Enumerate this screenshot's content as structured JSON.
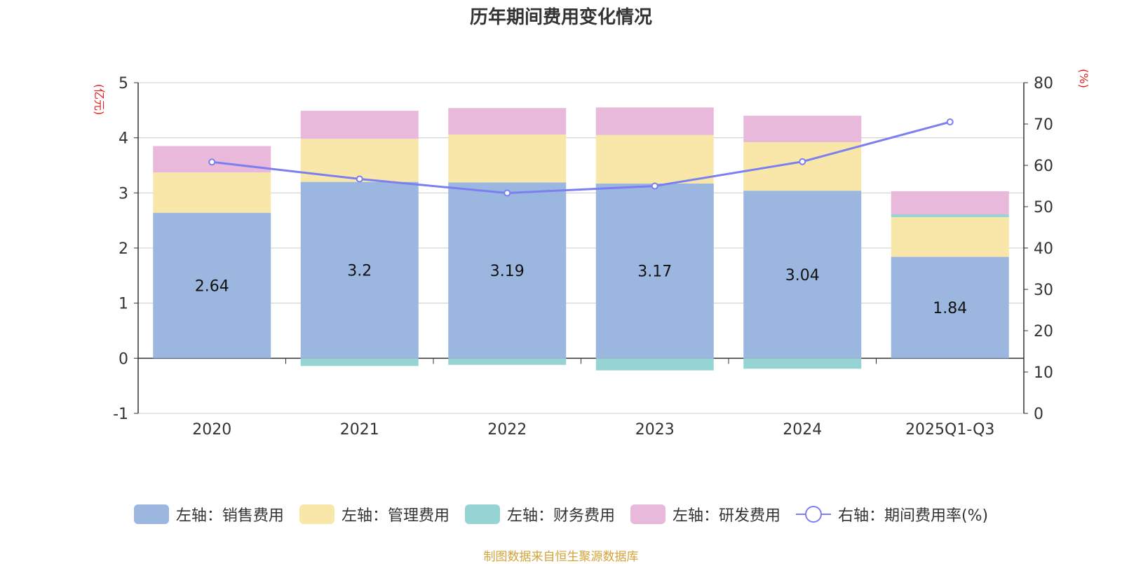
{
  "chart_data": {
    "type": "bar",
    "title": "历年期间费用变化情况",
    "categories": [
      "2020",
      "2021",
      "2022",
      "2023",
      "2024",
      "2025Q1-Q3"
    ],
    "left_axis": {
      "unit_label": "(亿元)",
      "ylim": [
        -1,
        5
      ],
      "ticks": [
        "-1",
        "0",
        "1",
        "2",
        "3",
        "4",
        "5"
      ]
    },
    "right_axis": {
      "unit_label": "(%)",
      "ylim": [
        0,
        80
      ],
      "ticks": [
        "0",
        "10",
        "20",
        "30",
        "40",
        "50",
        "60",
        "70",
        "80"
      ]
    },
    "series": [
      {
        "name": "左轴：销售费用",
        "type": "bar",
        "stack": true,
        "color": "#9bb7e0",
        "values": [
          2.64,
          3.2,
          3.19,
          3.17,
          3.04,
          1.84
        ],
        "labels": [
          "2.64",
          "3.2",
          "3.19",
          "3.17",
          "3.04",
          "1.84"
        ]
      },
      {
        "name": "左轴：管理费用",
        "type": "bar",
        "stack": true,
        "color": "#f9e7a9",
        "values": [
          0.73,
          0.78,
          0.87,
          0.88,
          0.88,
          0.72
        ]
      },
      {
        "name": "左轴：财务费用",
        "type": "bar",
        "stack": true,
        "color": "#96d4d4",
        "values": [
          0.0,
          -0.14,
          -0.12,
          -0.22,
          -0.19,
          0.05
        ]
      },
      {
        "name": "左轴：研发费用",
        "type": "bar",
        "stack": true,
        "color": "#e8b9da",
        "values": [
          0.48,
          0.51,
          0.48,
          0.5,
          0.48,
          0.42
        ]
      },
      {
        "name": "右轴：期间费用率(%)",
        "type": "line",
        "axis": "right",
        "color": "#7b7ff0",
        "values": [
          60.8,
          56.7,
          53.3,
          55.0,
          60.9,
          70.5
        ]
      }
    ]
  },
  "source": "制图数据来自恒生聚源数据库"
}
